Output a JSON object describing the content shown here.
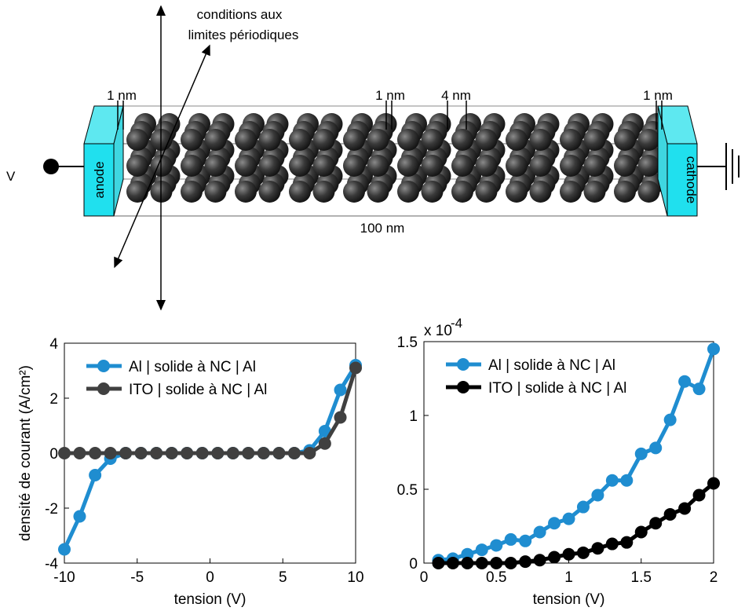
{
  "diagram": {
    "boundary_label": [
      "conditions aux",
      "limites périodiques"
    ],
    "voltage": "V",
    "anode": "anode",
    "cathode": "cathode",
    "dimensions": [
      "1 nm",
      "1 nm",
      "4 nm",
      "1 nm"
    ],
    "length": "100 nm"
  },
  "chart_data": [
    {
      "type": "line",
      "x_label": "tension (V)",
      "y_label": "densité de courant (A/cm²)",
      "xlim": [
        -10,
        10
      ],
      "xticks": [
        -10,
        -5,
        0,
        5,
        10
      ],
      "ylim": [
        -4,
        4
      ],
      "yticks": [
        -4,
        -2,
        0,
        2,
        4
      ],
      "legend": "upper left",
      "x": [
        -10,
        -8.95,
        -7.89,
        -6.84,
        -5.79,
        -4.74,
        -3.68,
        -2.63,
        -1.58,
        -0.53,
        0.53,
        1.58,
        2.63,
        3.68,
        4.74,
        5.79,
        6.84,
        7.89,
        8.95,
        10
      ],
      "series": [
        {
          "name": "Al | solide à NC | Al",
          "color": "#1f8dd0",
          "values": [
            -3.5,
            -2.3,
            -0.8,
            -0.2,
            0,
            0,
            0,
            0,
            0,
            0,
            0,
            0,
            0,
            0,
            0,
            0,
            0.1,
            0.8,
            2.3,
            3.2
          ]
        },
        {
          "name": "ITO | solide à NC | Al",
          "color": "#404040",
          "values": [
            0,
            0,
            0,
            0,
            0,
            0,
            0,
            0,
            0,
            0,
            0,
            0,
            0,
            0,
            0,
            0,
            0,
            0.35,
            1.3,
            3.1
          ]
        }
      ]
    },
    {
      "type": "line",
      "x_label": "tension (V)",
      "y_exponent_base": "x 10",
      "y_exponent": "-4",
      "xlim": [
        0,
        2
      ],
      "xticks": [
        0,
        0.5,
        1,
        1.5,
        2
      ],
      "ylim": [
        0,
        1.5
      ],
      "yticks": [
        0,
        0.5,
        1,
        1.5
      ],
      "legend": "upper left",
      "x": [
        0.1,
        0.2,
        0.3,
        0.4,
        0.5,
        0.6,
        0.7,
        0.8,
        0.9,
        1,
        1.1,
        1.2,
        1.3,
        1.4,
        1.5,
        1.6,
        1.7,
        1.8,
        1.9,
        2
      ],
      "series": [
        {
          "name": "Al | solide à NC | Al",
          "color": "#1f8dd0",
          "values": [
            0.02,
            0.03,
            0.06,
            0.09,
            0.12,
            0.16,
            0.15,
            0.21,
            0.27,
            0.3,
            0.38,
            0.46,
            0.56,
            0.56,
            0.74,
            0.78,
            0.97,
            1.23,
            1.18,
            1.45
          ]
        },
        {
          "name": "ITO | solide à NC | Al",
          "color": "#000000",
          "values": [
            0,
            0,
            0,
            0,
            0,
            0,
            0.01,
            0.02,
            0.04,
            0.06,
            0.07,
            0.1,
            0.13,
            0.14,
            0.21,
            0.27,
            0.33,
            0.37,
            0.46,
            0.54
          ]
        }
      ]
    }
  ]
}
